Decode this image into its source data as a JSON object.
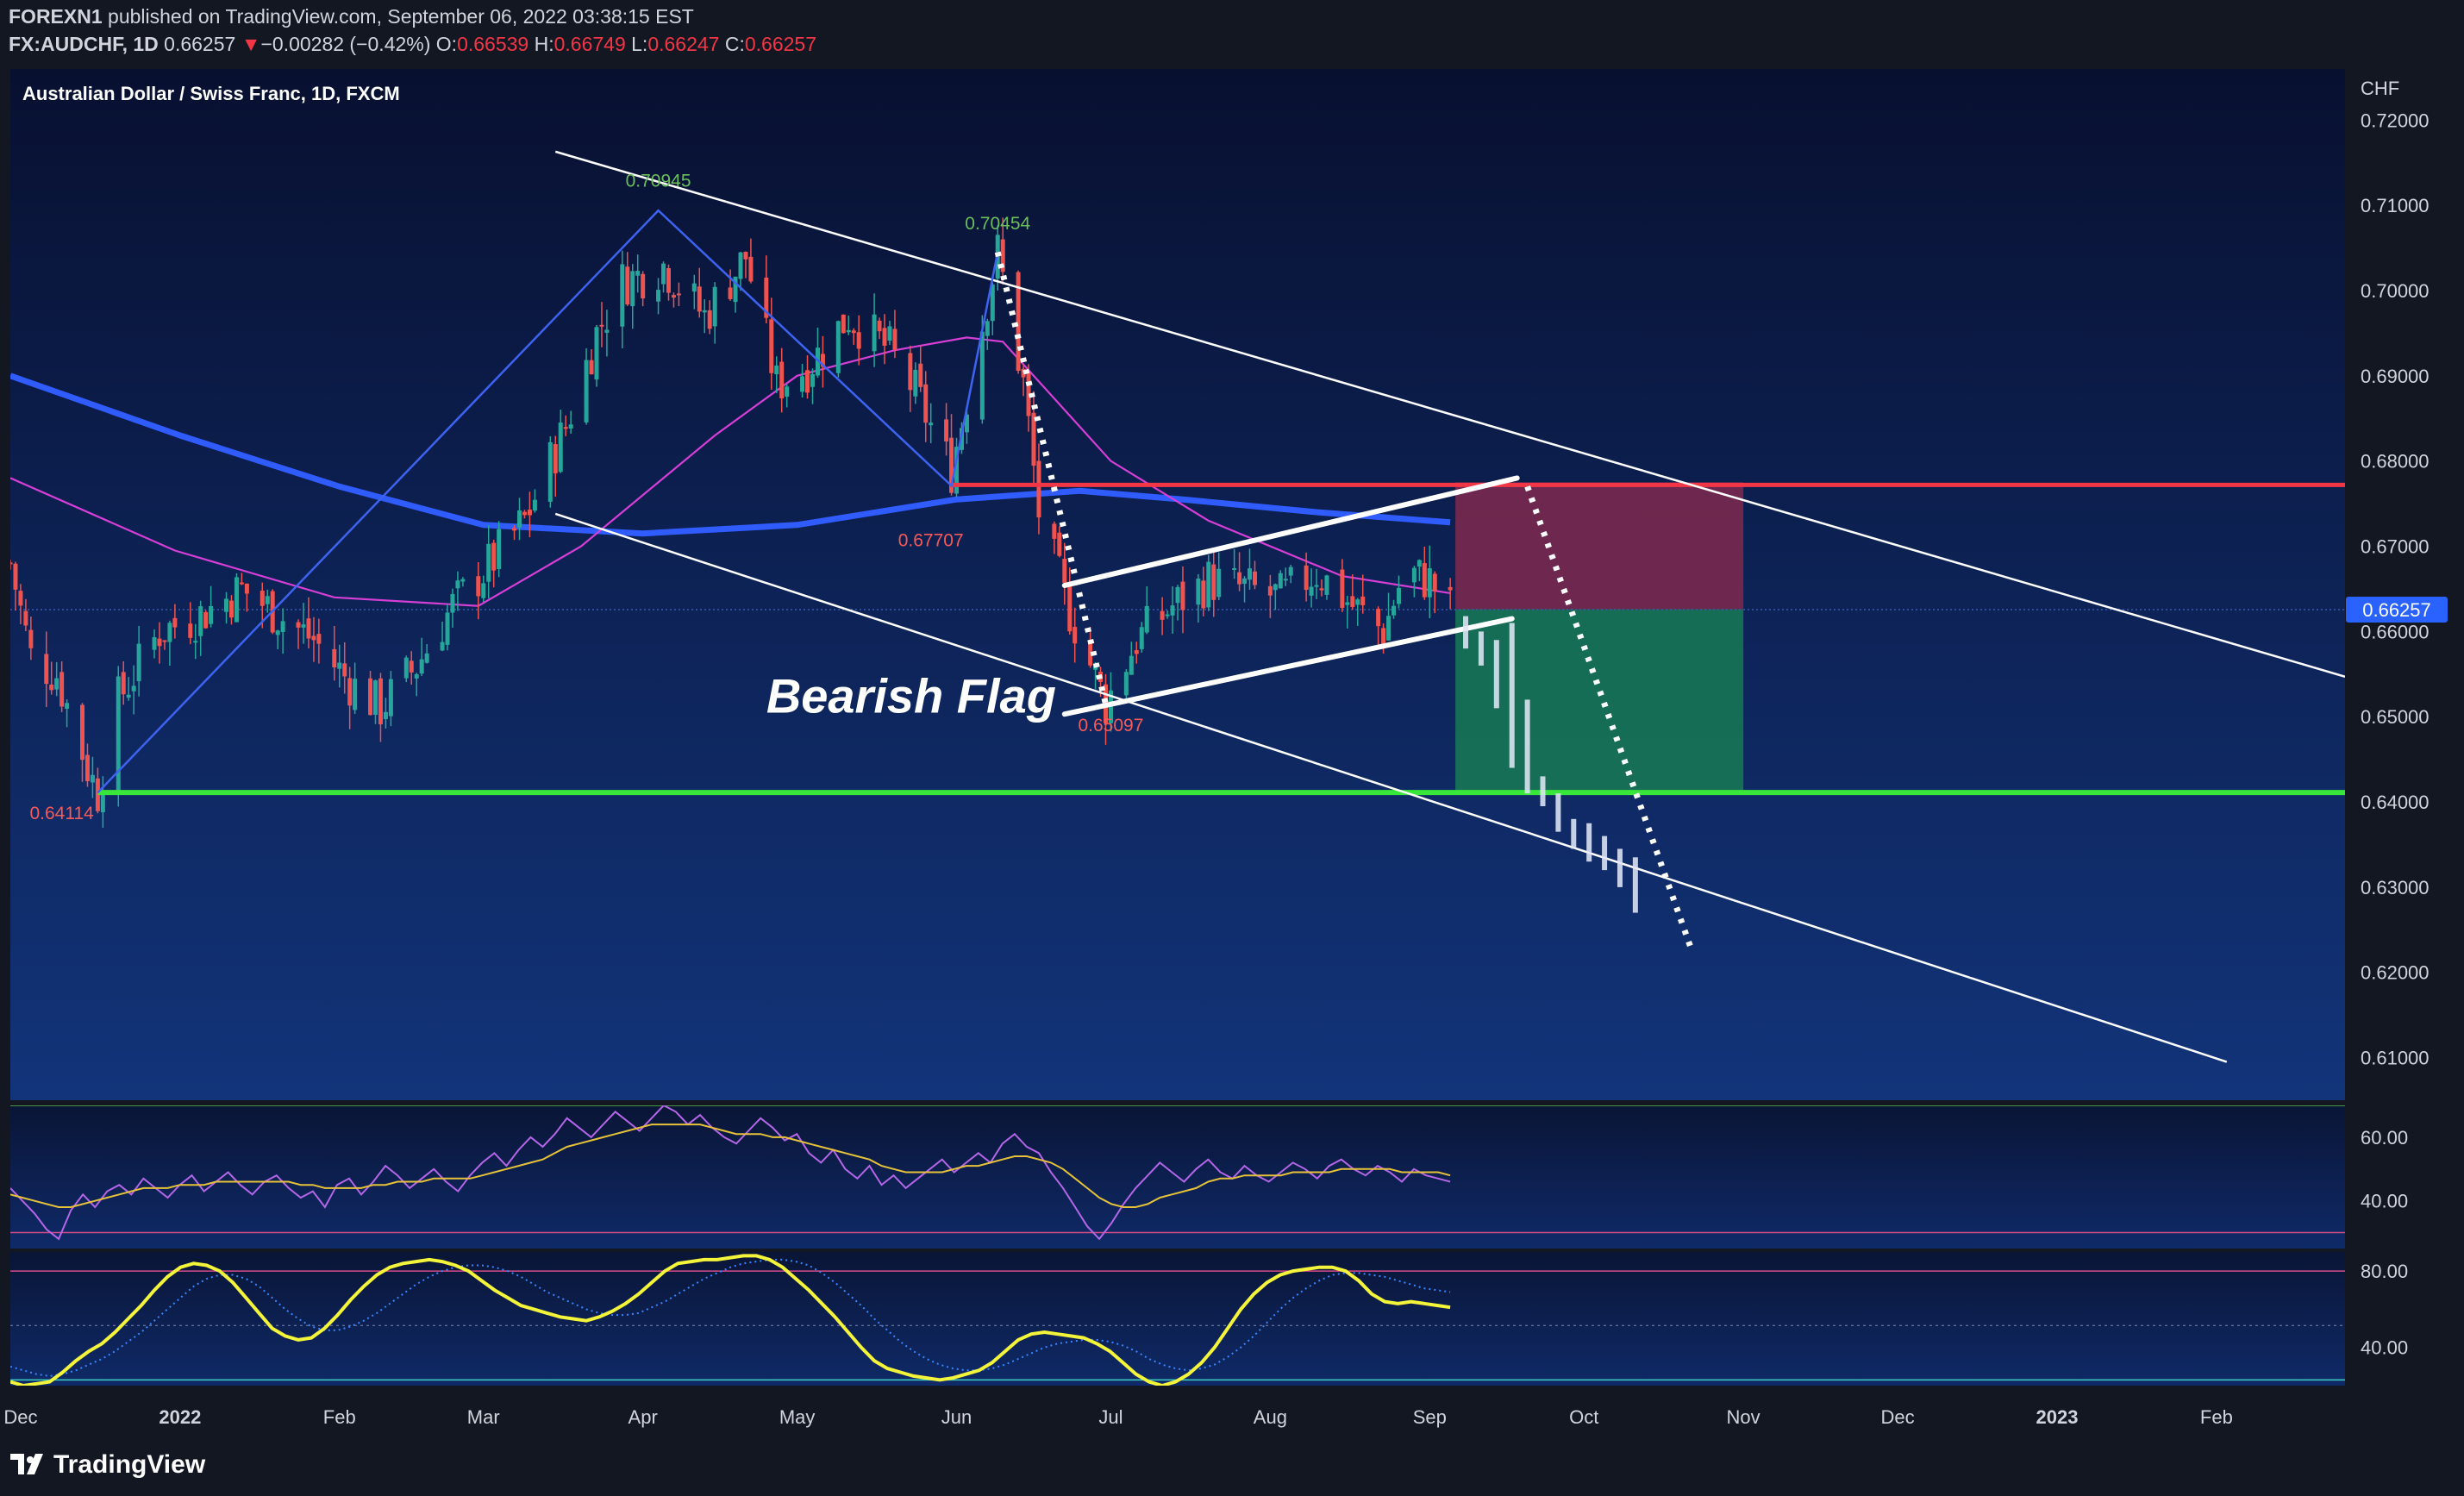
{
  "header": {
    "line1_publisher": "FOREXN1",
    "line1_rest": "published on TradingView.com, September 06, 2022 03:38:15 EST",
    "symbol": "FX:AUDCHF, 1D",
    "last": "0.66257",
    "arrow": "▼",
    "change": "−0.00282 (−0.42%)",
    "o_label": "O:",
    "o": "0.66539",
    "h_label": "H:",
    "h": "0.66749",
    "l_label": "L:",
    "l": "0.66247",
    "c_label": "C:",
    "c": "0.66257"
  },
  "brand": {
    "name": "TradingView"
  },
  "colors": {
    "bg": "#131722",
    "panel_top": "#081030",
    "panel_bottom": "#12347a",
    "up": "#26a69a",
    "down": "#ef5350",
    "resistance": "#f23645",
    "support": "#39e63a",
    "ma_long": "#2f5bff",
    "ma_short": "#d63fd6",
    "rsi": "#b466e8",
    "stoch": "#f4f53a"
  },
  "chart_data": {
    "type": "candlestick",
    "title": "Australian Dollar / Swiss Franc, 1D, FXCM",
    "currency": "CHF",
    "ylim": [
      0.605,
      0.726
    ],
    "y_ticks": [
      {
        "v": 0.72,
        "label": "0.72000"
      },
      {
        "v": 0.71,
        "label": "0.71000"
      },
      {
        "v": 0.7,
        "label": "0.70000"
      },
      {
        "v": 0.69,
        "label": "0.69000"
      },
      {
        "v": 0.68,
        "label": "0.68000"
      },
      {
        "v": 0.67,
        "label": "0.67000"
      },
      {
        "v": 0.66,
        "label": "0.66000"
      },
      {
        "v": 0.65,
        "label": "0.65000"
      },
      {
        "v": 0.64,
        "label": "0.64000"
      },
      {
        "v": 0.63,
        "label": "0.63000"
      },
      {
        "v": 0.62,
        "label": "0.62000"
      },
      {
        "v": 0.61,
        "label": "0.61000"
      }
    ],
    "last_price": {
      "v": 0.66257,
      "label": "0.66257"
    },
    "x_start": "2021-11-29",
    "x_end": "2023-02-26",
    "x_ticks": [
      {
        "d": "2021-12-01",
        "label": "Dec",
        "bold": false
      },
      {
        "d": "2022-01-01",
        "label": "2022",
        "bold": true
      },
      {
        "d": "2022-02-01",
        "label": "Feb",
        "bold": false
      },
      {
        "d": "2022-03-01",
        "label": "Mar",
        "bold": false
      },
      {
        "d": "2022-04-01",
        "label": "Apr",
        "bold": false
      },
      {
        "d": "2022-05-01",
        "label": "May",
        "bold": false
      },
      {
        "d": "2022-06-01",
        "label": "Jun",
        "bold": false
      },
      {
        "d": "2022-07-01",
        "label": "Jul",
        "bold": false
      },
      {
        "d": "2022-08-01",
        "label": "Aug",
        "bold": false
      },
      {
        "d": "2022-09-01",
        "label": "Sep",
        "bold": false
      },
      {
        "d": "2022-10-01",
        "label": "Oct",
        "bold": false
      },
      {
        "d": "2022-11-01",
        "label": "Nov",
        "bold": false
      },
      {
        "d": "2022-12-01",
        "label": "Dec",
        "bold": false
      },
      {
        "d": "2023-01-01",
        "label": "2023",
        "bold": true
      },
      {
        "d": "2023-02-01",
        "label": "Feb",
        "bold": false
      }
    ],
    "price_path": [
      [
        "2021-11-29",
        0.668
      ],
      [
        "2021-12-03",
        0.657
      ],
      [
        "2021-12-08",
        0.655
      ],
      [
        "2021-12-14",
        0.644
      ],
      [
        "2021-12-16",
        0.6411
      ],
      [
        "2021-12-20",
        0.652
      ],
      [
        "2021-12-28",
        0.66
      ],
      [
        "2022-01-05",
        0.662
      ],
      [
        "2022-01-13",
        0.665
      ],
      [
        "2022-01-20",
        0.662
      ],
      [
        "2022-01-27",
        0.659
      ],
      [
        "2022-02-03",
        0.654
      ],
      [
        "2022-02-09",
        0.651
      ],
      [
        "2022-02-16",
        0.656
      ],
      [
        "2022-02-23",
        0.663
      ],
      [
        "2022-03-01",
        0.667
      ],
      [
        "2022-03-09",
        0.673
      ],
      [
        "2022-03-17",
        0.684
      ],
      [
        "2022-03-23",
        0.695
      ],
      [
        "2022-03-28",
        0.701
      ],
      [
        "2022-04-05",
        0.703
      ],
      [
        "2022-04-13",
        0.697
      ],
      [
        "2022-04-21",
        0.704
      ],
      [
        "2022-04-27",
        0.689
      ],
      [
        "2022-05-03",
        0.691
      ],
      [
        "2022-05-11",
        0.697
      ],
      [
        "2022-05-19",
        0.693
      ],
      [
        "2022-05-24",
        0.688
      ],
      [
        "2022-05-31",
        0.679
      ],
      [
        "2022-06-07",
        0.699
      ],
      [
        "2022-06-09",
        0.7045
      ],
      [
        "2022-06-14",
        0.689
      ],
      [
        "2022-06-17",
        0.674
      ],
      [
        "2022-06-22",
        0.664
      ],
      [
        "2022-06-30",
        0.6515
      ],
      [
        "2022-07-06",
        0.659
      ],
      [
        "2022-07-13",
        0.663
      ],
      [
        "2022-07-20",
        0.666
      ],
      [
        "2022-07-27",
        0.665
      ],
      [
        "2022-08-03",
        0.664
      ],
      [
        "2022-08-10",
        0.667
      ],
      [
        "2022-08-17",
        0.663
      ],
      [
        "2022-08-23",
        0.66
      ],
      [
        "2022-08-27",
        0.667
      ],
      [
        "2022-09-01",
        0.666
      ],
      [
        "2022-09-05",
        0.6626
      ]
    ],
    "ma_long": [
      [
        "2021-11-29",
        0.69
      ],
      [
        "2022-01-01",
        0.683
      ],
      [
        "2022-02-01",
        0.677
      ],
      [
        "2022-03-01",
        0.6725
      ],
      [
        "2022-04-01",
        0.6715
      ],
      [
        "2022-05-01",
        0.6725
      ],
      [
        "2022-06-01",
        0.6755
      ],
      [
        "2022-06-25",
        0.6765
      ],
      [
        "2022-07-15",
        0.6755
      ],
      [
        "2022-08-10",
        0.674
      ],
      [
        "2022-09-05",
        0.6728
      ]
    ],
    "ma_short": [
      [
        "2021-11-29",
        0.678
      ],
      [
        "2021-12-31",
        0.6695
      ],
      [
        "2022-01-31",
        0.664
      ],
      [
        "2022-02-28",
        0.663
      ],
      [
        "2022-03-20",
        0.67
      ],
      [
        "2022-04-15",
        0.683
      ],
      [
        "2022-05-01",
        0.69
      ],
      [
        "2022-05-20",
        0.693
      ],
      [
        "2022-06-03",
        0.6945
      ],
      [
        "2022-06-10",
        0.694
      ],
      [
        "2022-07-01",
        0.68
      ],
      [
        "2022-07-20",
        0.673
      ],
      [
        "2022-08-15",
        0.6665
      ],
      [
        "2022-09-05",
        0.6645
      ]
    ],
    "resistance": {
      "v": 0.6772,
      "from": "2022-05-31",
      "to": "2023-02-26"
    },
    "support": {
      "v": 0.6411,
      "from": "2021-12-16",
      "to": "2023-02-26"
    },
    "risk_box": {
      "from": "2022-09-06",
      "to": "2022-11-01",
      "top": 0.6775,
      "mid": 0.6626,
      "bottom": 0.6411
    },
    "channel": [
      {
        "p1": [
          "2022-03-15",
          0.7163
        ],
        "p2": [
          "2023-02-26",
          0.6547
        ]
      },
      {
        "p1": [
          "2022-03-15",
          0.6738
        ],
        "p2": [
          "2023-02-03",
          0.6095
        ]
      }
    ],
    "flag": [
      {
        "p1": [
          "2022-06-22",
          0.6654
        ],
        "p2": [
          "2022-09-18",
          0.678
        ]
      },
      {
        "p1": [
          "2022-06-22",
          0.6503
        ],
        "p2": [
          "2022-09-17",
          0.6615
        ]
      }
    ],
    "zigzag": [
      [
        "2021-12-16",
        0.6411
      ],
      [
        "2022-04-04",
        0.7094
      ],
      [
        "2022-05-31",
        0.6771
      ],
      [
        "2022-06-09",
        0.7045
      ]
    ],
    "dotted_pole": [
      [
        "2022-06-09",
        0.7045
      ],
      [
        "2022-06-30",
        0.6515
      ]
    ],
    "dotted_projection": [
      [
        "2022-09-20",
        0.677
      ],
      [
        "2022-10-22",
        0.6225
      ]
    ],
    "ghost_bars": [
      [
        "2022-09-08",
        0.6618,
        0.658
      ],
      [
        "2022-09-11",
        0.66,
        0.656
      ],
      [
        "2022-09-14",
        0.659,
        0.651
      ],
      [
        "2022-09-17",
        0.661,
        0.644
      ],
      [
        "2022-09-20",
        0.652,
        0.641
      ],
      [
        "2022-09-23",
        0.643,
        0.6395
      ],
      [
        "2022-09-26",
        0.641,
        0.6365
      ],
      [
        "2022-09-29",
        0.638,
        0.6345
      ],
      [
        "2022-10-02",
        0.6375,
        0.633
      ],
      [
        "2022-10-05",
        0.636,
        0.632
      ],
      [
        "2022-10-08",
        0.6345,
        0.63
      ],
      [
        "2022-10-11",
        0.6335,
        0.627
      ]
    ],
    "annotations": [
      {
        "text": "0.70945",
        "d": "2022-04-04",
        "v": 0.7122,
        "color": "#6bbf5a"
      },
      {
        "text": "0.70454",
        "d": "2022-06-09",
        "v": 0.7072,
        "color": "#6bbf5a"
      },
      {
        "text": "0.67707",
        "d": "2022-05-27",
        "v": 0.67,
        "color": "#f55a5a"
      },
      {
        "text": "0.65097",
        "d": "2022-07-01",
        "v": 0.6483,
        "color": "#f55a5a"
      },
      {
        "text": "0.64114",
        "d": "2021-12-09",
        "v": 0.638,
        "color": "#f55a5a"
      },
      {
        "text": "Bearish Flag",
        "d": "2022-04-25",
        "v": 0.6505,
        "color": "#ffffff",
        "big": true
      }
    ],
    "rsi": {
      "ylim": [
        25,
        70
      ],
      "ticks": [
        {
          "v": 60,
          "label": "60.00"
        },
        {
          "v": 40,
          "label": "40.00"
        }
      ],
      "upper": 70,
      "lower": 30,
      "values": [
        44,
        40,
        36,
        31,
        28,
        37,
        42,
        38,
        43,
        45,
        42,
        47,
        44,
        41,
        45,
        48,
        43,
        46,
        49,
        45,
        42,
        46,
        48,
        44,
        41,
        43,
        38,
        45,
        47,
        42,
        46,
        51,
        48,
        44,
        47,
        50,
        46,
        43,
        48,
        52,
        55,
        51,
        56,
        60,
        57,
        61,
        66,
        63,
        60,
        64,
        68,
        65,
        62,
        66,
        70,
        68,
        64,
        67,
        63,
        60,
        58,
        62,
        66,
        63,
        59,
        61,
        55,
        52,
        56,
        50,
        47,
        51,
        45,
        48,
        44,
        47,
        50,
        53,
        49,
        52,
        55,
        52,
        58,
        61,
        57,
        55,
        49,
        44,
        38,
        32,
        28,
        33,
        39,
        44,
        48,
        52,
        49,
        46,
        50,
        53,
        49,
        47,
        51,
        48,
        46,
        49,
        52,
        50,
        47,
        51,
        53,
        50,
        48,
        51,
        49,
        46,
        50,
        48,
        47,
        46
      ],
      "signal": [
        42,
        41,
        40,
        39,
        38,
        38,
        39,
        40,
        41,
        42,
        43,
        44,
        44,
        44,
        45,
        45,
        45,
        46,
        46,
        46,
        46,
        46,
        46,
        46,
        45,
        45,
        44,
        44,
        44,
        44,
        45,
        45,
        46,
        46,
        46,
        47,
        47,
        47,
        47,
        48,
        49,
        50,
        51,
        52,
        53,
        55,
        57,
        58,
        59,
        60,
        61,
        62,
        63,
        64,
        64,
        64,
        64,
        64,
        63,
        62,
        61,
        61,
        61,
        60,
        60,
        59,
        58,
        57,
        56,
        55,
        54,
        53,
        51,
        50,
        49,
        49,
        49,
        49,
        50,
        51,
        51,
        52,
        53,
        54,
        54,
        53,
        52,
        50,
        47,
        44,
        41,
        39,
        38,
        38,
        39,
        41,
        42,
        43,
        44,
        46,
        47,
        47,
        48,
        48,
        48,
        48,
        49,
        49,
        49,
        49,
        50,
        50,
        50,
        50,
        50,
        49,
        49,
        49,
        49,
        48
      ]
    },
    "stoch": {
      "ylim": [
        20,
        90
      ],
      "ticks": [
        {
          "v": 80,
          "label": "80.00"
        },
        {
          "v": 40,
          "label": "40.00"
        }
      ],
      "upper": 80,
      "lower": 23,
      "k": [
        22,
        20,
        21,
        22,
        27,
        33,
        38,
        42,
        48,
        55,
        62,
        70,
        77,
        82,
        84,
        83,
        80,
        74,
        66,
        58,
        50,
        46,
        44,
        45,
        50,
        57,
        65,
        72,
        78,
        82,
        84,
        85,
        86,
        85,
        83,
        80,
        75,
        70,
        66,
        62,
        60,
        58,
        56,
        55,
        54,
        56,
        59,
        63,
        68,
        74,
        80,
        84,
        85,
        86,
        86,
        87,
        88,
        88,
        86,
        82,
        76,
        70,
        63,
        56,
        48,
        40,
        33,
        29,
        27,
        25,
        24,
        23,
        24,
        26,
        28,
        32,
        38,
        44,
        47,
        48,
        47,
        46,
        45,
        42,
        38,
        32,
        26,
        22,
        20,
        22,
        26,
        32,
        40,
        50,
        60,
        68,
        74,
        78,
        80,
        81,
        82,
        82,
        80,
        75,
        68,
        64,
        63,
        64,
        63,
        62,
        61
      ]
    },
    "stoch_d": [
      30,
      28,
      26,
      25,
      26,
      28,
      31,
      34,
      38,
      43,
      48,
      54,
      60,
      66,
      72,
      76,
      78,
      78,
      76,
      72,
      66,
      60,
      55,
      51,
      49,
      49,
      51,
      54,
      58,
      63,
      68,
      73,
      77,
      80,
      82,
      83,
      83,
      82,
      80,
      77,
      73,
      69,
      66,
      63,
      60,
      58,
      57,
      57,
      58,
      61,
      64,
      68,
      72,
      76,
      79,
      82,
      84,
      85,
      86,
      86,
      85,
      83,
      79,
      74,
      68,
      62,
      55,
      49,
      43,
      38,
      34,
      31,
      29,
      28,
      28,
      29,
      31,
      34,
      37,
      40,
      42,
      43,
      44,
      44,
      43,
      41,
      38,
      34,
      31,
      29,
      28,
      29,
      31,
      35,
      40,
      46,
      53,
      60,
      66,
      71,
      75,
      78,
      79,
      79,
      78,
      77,
      75,
      73,
      71,
      70,
      69
    ]
  }
}
